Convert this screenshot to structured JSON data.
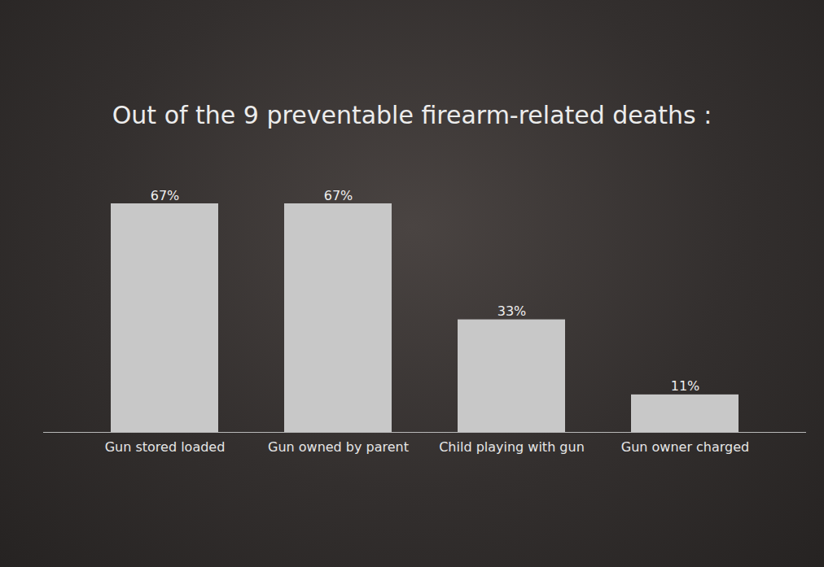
{
  "chart_data": {
    "type": "bar",
    "title": "Out of the 9 preventable firearm-related deaths :",
    "categories": [
      "Gun stored loaded",
      "Gun owned by parent",
      "Child playing with gun",
      "Gun owner charged"
    ],
    "values": [
      67,
      67,
      33,
      11
    ],
    "value_labels": [
      "67%",
      "67%",
      "33%",
      "11%"
    ],
    "color": "#c8c8c8",
    "ylim": [
      0,
      67
    ],
    "data_labels": true,
    "tick_labels": "x"
  }
}
